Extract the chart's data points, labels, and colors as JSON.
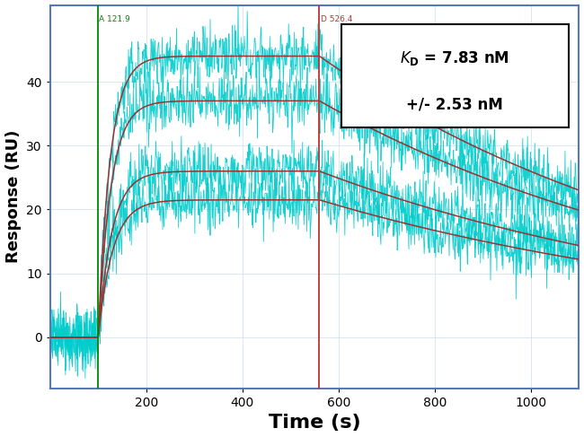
{
  "xlabel": "Time (s)",
  "ylabel": "Response (RU)",
  "xlim": [
    0,
    1100
  ],
  "ylim": [
    -8,
    52
  ],
  "yticks": [
    0,
    10,
    20,
    30,
    40
  ],
  "xticks": [
    200,
    400,
    600,
    800,
    1000
  ],
  "green_vline": 100,
  "red_vline": 560,
  "green_vline_label": "A 121.9",
  "red_vline_label": "D 526.4",
  "association_start": 100,
  "association_end": 560,
  "dissociation_end": 1100,
  "noise_amplitude": 2.2,
  "curves": [
    {
      "Rmax": 44.0,
      "ka": 0.04,
      "kd": 0.0012
    },
    {
      "Rmax": 37.0,
      "ka": 0.038,
      "kd": 0.00115
    },
    {
      "Rmax": 26.0,
      "ka": 0.035,
      "kd": 0.0011
    },
    {
      "Rmax": 21.5,
      "ka": 0.033,
      "kd": 0.00105
    }
  ],
  "noise_color": "#00CCCC",
  "fit_color": "#993333",
  "bg_color": "#FFFFFF",
  "border_color": "#5577BB",
  "green_color": "#008800",
  "red_color": "#BB3333",
  "xlabel_fontsize": 16,
  "ylabel_fontsize": 13,
  "tick_fontsize": 10,
  "grid_color": "#CCDDEE"
}
